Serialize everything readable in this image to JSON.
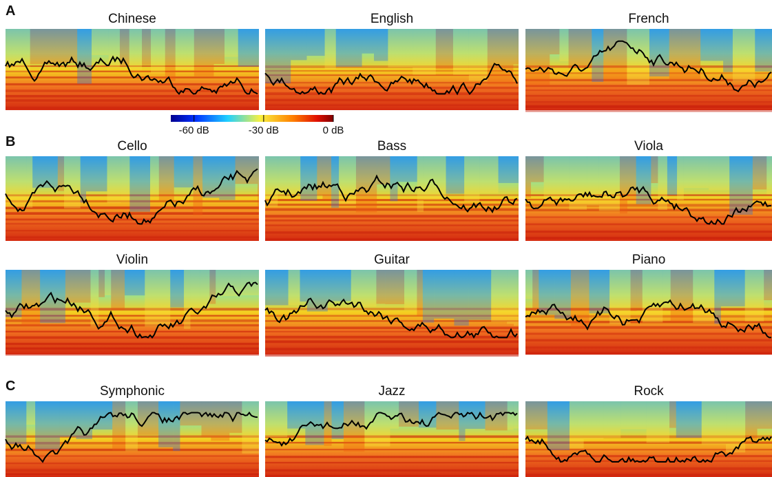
{
  "sections": [
    {
      "label": "A",
      "rows": [
        [
          "Chinese",
          "English",
          "French"
        ]
      ]
    },
    {
      "label": "B",
      "rows": [
        [
          "Cello",
          "Bass",
          "Viola"
        ],
        [
          "Violin",
          "Guitar",
          "Piano"
        ]
      ]
    },
    {
      "label": "C",
      "rows": [
        [
          "Symphonic",
          "Jazz",
          "Rock"
        ]
      ]
    }
  ],
  "colorbar": {
    "lim": [
      -70,
      0
    ],
    "ticks": [
      {
        "value": -60,
        "label": "-60 dB"
      },
      {
        "value": -30,
        "label": "-30 dB"
      },
      {
        "value": 0,
        "label": "0 dB"
      }
    ]
  }
}
